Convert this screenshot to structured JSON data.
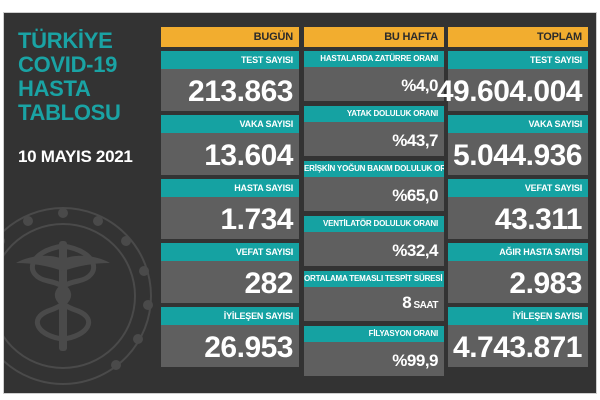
{
  "title_lines": [
    "TÜRKİYE",
    "COVID-19",
    "HASTA",
    "TABLOSU"
  ],
  "date": "10 MAYIS 2021",
  "colors": {
    "teal": "#15a2a2",
    "orange": "#f2ad2f",
    "dark": "#333333",
    "card": "#5f5f5f"
  },
  "today": {
    "header": "BUGÜN",
    "cards": [
      {
        "label": "TEST SAYISI",
        "value": "213.863"
      },
      {
        "label": "VAKA SAYISI",
        "value": "13.604"
      },
      {
        "label": "HASTA SAYISI",
        "value": "1.734"
      },
      {
        "label": "VEFAT SAYISI",
        "value": "282"
      },
      {
        "label": "İYİLEŞEN SAYISI",
        "value": "26.953"
      }
    ]
  },
  "week": {
    "header": "BU HAFTA",
    "cards": [
      {
        "label": "HASTALARDA ZATÜRRE ORANI",
        "value": "%4,0"
      },
      {
        "label": "YATAK DOLULUK ORANI",
        "value": "%43,7"
      },
      {
        "label": "ERİŞKİN YOĞUN BAKIM DOLULUK ORANI",
        "value": "%65,0"
      },
      {
        "label": "VENTİLATÖR DOLULUK ORANI",
        "value": "%32,4"
      },
      {
        "label": "ORTALAMA TEMASLI TESPİT SÜRESİ",
        "value": "8",
        "unit": " SAAT"
      },
      {
        "label": "FİLYASYON ORANI",
        "value": "%99,9"
      }
    ]
  },
  "total": {
    "header": "TOPLAM",
    "cards": [
      {
        "label": "TEST SAYISI",
        "value": "49.604.004"
      },
      {
        "label": "VAKA SAYISI",
        "value": "5.044.936"
      },
      {
        "label": "VEFAT SAYISI",
        "value": "43.311"
      },
      {
        "label": "AĞIR HASTA SAYISI",
        "value": "2.983"
      },
      {
        "label": "İYİLEŞEN SAYISI",
        "value": "4.743.871"
      }
    ]
  }
}
